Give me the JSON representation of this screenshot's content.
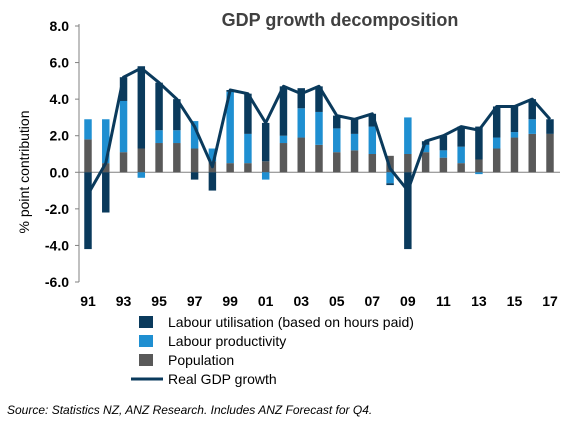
{
  "chart_data": {
    "type": "bar",
    "title": "GDP growth decomposition",
    "ylabel": "% point contribution",
    "xlabel": "",
    "ylim": [
      -6,
      8
    ],
    "yticks": [
      "8.0",
      "6.0",
      "4.0",
      "2.0",
      "0.0",
      "-2.0",
      "-4.0",
      "-6.0"
    ],
    "xtick_labels": [
      "91",
      "93",
      "95",
      "97",
      "99",
      "01",
      "03",
      "05",
      "07",
      "09",
      "11",
      "13",
      "15",
      "17"
    ],
    "x": [
      1991,
      1992,
      1993,
      1994,
      1995,
      1996,
      1997,
      1998,
      1999,
      2000,
      2001,
      2002,
      2003,
      2004,
      2005,
      2006,
      2007,
      2008,
      2009,
      2010,
      2011,
      2012,
      2013,
      2014,
      2015,
      2016,
      2017
    ],
    "stacked": true,
    "series": [
      {
        "name": "Population",
        "color": "#595959",
        "values": [
          1.8,
          0.5,
          1.1,
          1.3,
          1.6,
          1.6,
          1.3,
          0.6,
          0.5,
          0.5,
          0.6,
          1.6,
          1.9,
          1.5,
          1.1,
          1.2,
          1.0,
          0.9,
          1.0,
          1.1,
          0.8,
          0.5,
          0.7,
          1.3,
          1.9,
          2.1,
          2.1
        ]
      },
      {
        "name": "Labour productivity",
        "color": "#1f8fd1",
        "values": [
          1.1,
          2.4,
          2.8,
          -0.3,
          0.7,
          0.7,
          1.5,
          0.7,
          3.9,
          1.6,
          -0.4,
          0.4,
          1.6,
          1.8,
          1.3,
          0.9,
          1.5,
          -0.6,
          2.0,
          0.4,
          0.4,
          0.9,
          -0.1,
          0.6,
          0.3,
          0.8,
          0.0
        ]
      },
      {
        "name": "Labour utilisation (based on hours paid)",
        "color": "#0a3a5c",
        "values": [
          -4.2,
          -2.2,
          1.3,
          4.5,
          2.6,
          1.7,
          -0.4,
          -1.0,
          0.1,
          2.2,
          2.1,
          2.7,
          1.1,
          1.4,
          0.7,
          0.8,
          0.7,
          -0.1,
          -4.2,
          0.2,
          0.8,
          1.1,
          1.8,
          1.7,
          1.4,
          1.1,
          0.8
        ]
      }
    ],
    "line": {
      "name": "Real GDP growth",
      "color": "#0a3a5c",
      "values": [
        -1.2,
        0.5,
        5.2,
        5.7,
        4.9,
        4.0,
        2.5,
        0.3,
        4.5,
        4.3,
        2.7,
        4.7,
        4.3,
        4.7,
        3.1,
        2.9,
        3.2,
        0.2,
        -1.0,
        1.7,
        2.0,
        2.5,
        2.3,
        3.6,
        3.6,
        4.0,
        2.9
      ]
    },
    "legend": [
      "Labour utilisation (based on hours paid)",
      "Labour productivity",
      "Population",
      "Real GDP growth"
    ],
    "legend_position": "bottom",
    "grid": false
  },
  "source_note": "Source: Statistics NZ, ANZ Research. Includes ANZ Forecast for Q4."
}
